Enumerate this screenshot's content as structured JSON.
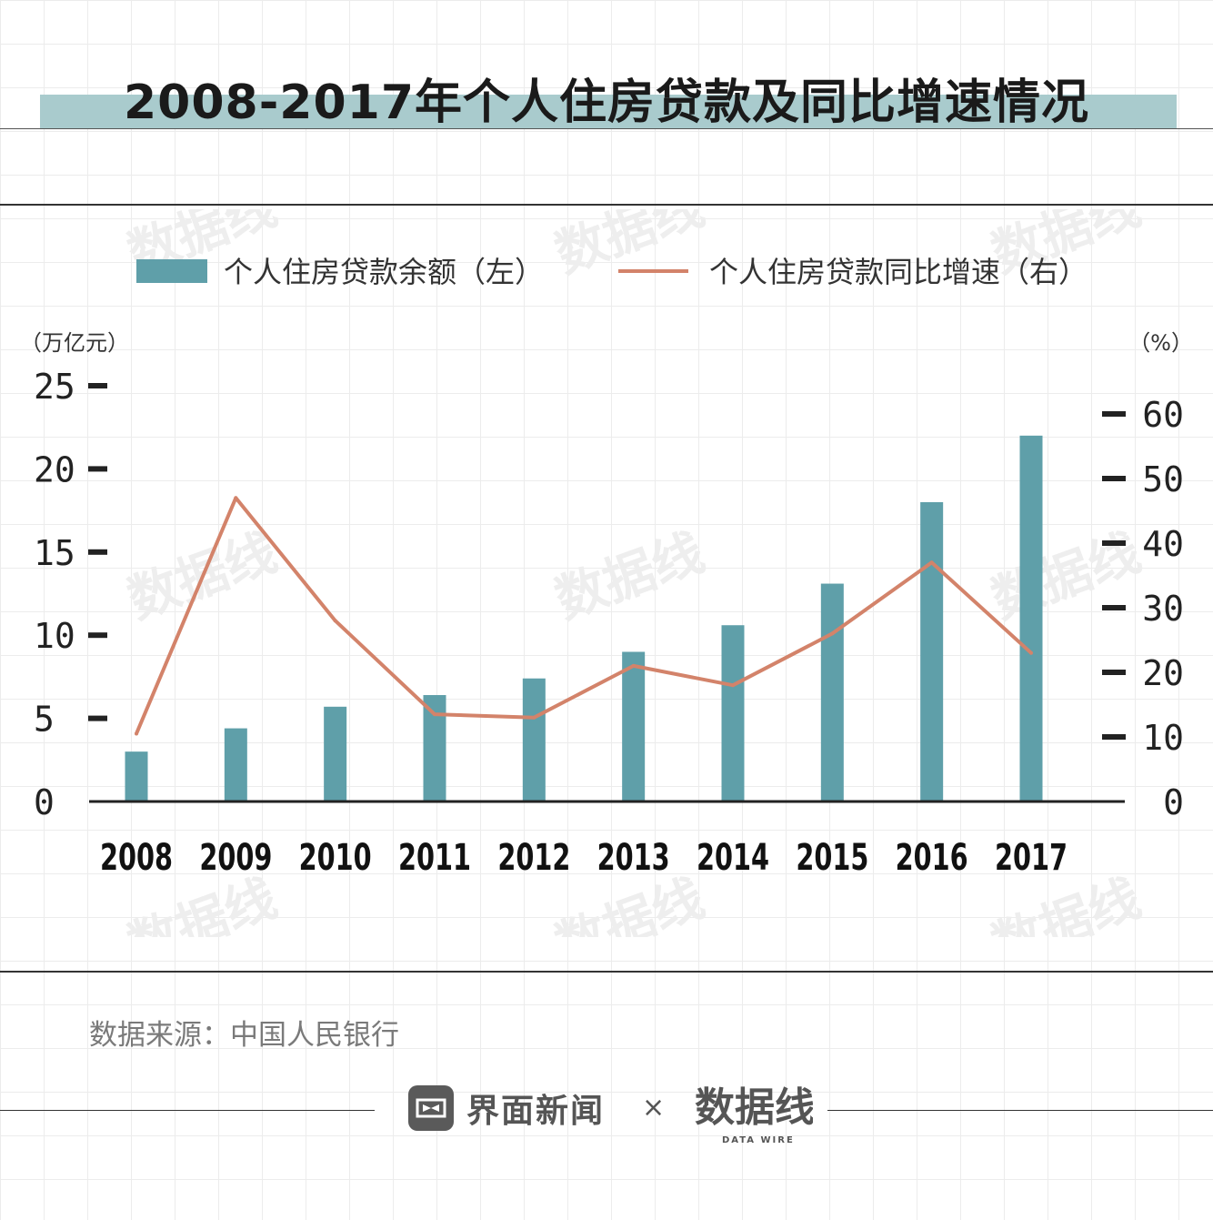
{
  "page": {
    "title": "2008-2017年个人住房贷款及同比增速情况",
    "source": "数据来源：中国人民银行",
    "footer_brand": "界面新闻",
    "footer_times": "×",
    "watermark_brand": "数据线",
    "watermark_sub": "DATA WIRE",
    "colors": {
      "bar": "#5f9fa9",
      "line": "#d3836a",
      "title_band": "#a9cbcd",
      "axis": "#222222"
    }
  },
  "chart_data": {
    "type": "bar",
    "categories": [
      "2008",
      "2009",
      "2010",
      "2011",
      "2012",
      "2013",
      "2014",
      "2015",
      "2016",
      "2017"
    ],
    "series": [
      {
        "name": "个人住房贷款余额（左）",
        "type": "bar",
        "axis": "left",
        "values": [
          3.0,
          4.4,
          5.7,
          6.4,
          7.4,
          9.0,
          10.6,
          13.1,
          18.0,
          22.0
        ]
      },
      {
        "name": "个人住房贷款同比增速（右）",
        "type": "line",
        "axis": "right",
        "values": [
          10.5,
          47.0,
          28.0,
          13.5,
          13.0,
          21.0,
          18.0,
          26.0,
          37.0,
          23.0
        ]
      }
    ],
    "left_axis": {
      "unit": "（万亿元）",
      "ticks": [
        0,
        5,
        10,
        15,
        20,
        25
      ],
      "ylim": [
        0,
        25
      ]
    },
    "right_axis": {
      "unit": "（%）",
      "ticks": [
        0,
        10,
        20,
        30,
        40,
        50,
        60
      ],
      "ylim": [
        0,
        60
      ]
    },
    "legend_position": "top",
    "grid": false
  }
}
